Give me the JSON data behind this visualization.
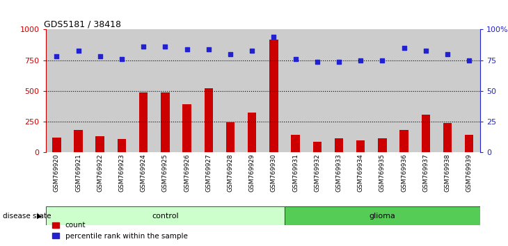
{
  "title": "GDS5181 / 38418",
  "samples": [
    "GSM769920",
    "GSM769921",
    "GSM769922",
    "GSM769923",
    "GSM769924",
    "GSM769925",
    "GSM769926",
    "GSM769927",
    "GSM769928",
    "GSM769929",
    "GSM769930",
    "GSM769931",
    "GSM769932",
    "GSM769933",
    "GSM769934",
    "GSM769935",
    "GSM769936",
    "GSM769937",
    "GSM769938",
    "GSM769939"
  ],
  "counts": [
    120,
    185,
    130,
    110,
    490,
    490,
    390,
    520,
    245,
    325,
    920,
    145,
    90,
    115,
    100,
    115,
    185,
    310,
    240,
    145
  ],
  "percentile_ranks": [
    78,
    83,
    78,
    76,
    86,
    86,
    84,
    84,
    80,
    83,
    94,
    76,
    74,
    74,
    75,
    75,
    85,
    83,
    80,
    75
  ],
  "n_control": 11,
  "n_glioma": 9,
  "bar_color": "#cc0000",
  "dot_color": "#2222cc",
  "col_bg_color": "#cccccc",
  "left_yaxis_color": "#cc0000",
  "right_yaxis_color": "#2222cc",
  "left_ylim": [
    0,
    1000
  ],
  "right_ylim": [
    0,
    100
  ],
  "left_yticks": [
    0,
    250,
    500,
    750,
    1000
  ],
  "right_yticks": [
    0,
    25,
    50,
    75,
    100
  ],
  "right_yticklabels": [
    "0",
    "25",
    "50",
    "75",
    "100%"
  ],
  "hlines": [
    250,
    500,
    750
  ],
  "legend_count_label": "count",
  "legend_percentile_label": "percentile rank within the sample",
  "xlabel_disease_state": "disease state",
  "label_control": "control",
  "label_glioma": "glioma",
  "control_color": "#ccffcc",
  "glioma_color": "#55cc55"
}
